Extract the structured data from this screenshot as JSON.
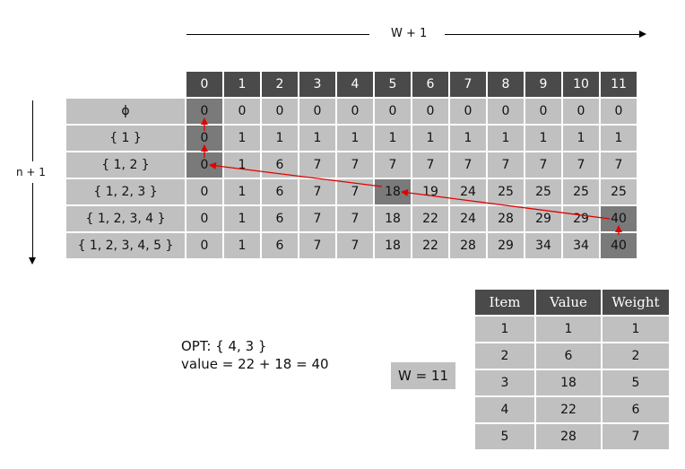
{
  "w_axis_label": "W + 1",
  "n_axis_label": "n + 1",
  "dp_table": {
    "column_headers": [
      "0",
      "1",
      "2",
      "3",
      "4",
      "5",
      "6",
      "7",
      "8",
      "9",
      "10",
      "11"
    ],
    "rows": [
      {
        "label": "ϕ",
        "values": [
          "0",
          "0",
          "0",
          "0",
          "0",
          "0",
          "0",
          "0",
          "0",
          "0",
          "0",
          "0"
        ]
      },
      {
        "label": "{ 1 }",
        "values": [
          "0",
          "1",
          "1",
          "1",
          "1",
          "1",
          "1",
          "1",
          "1",
          "1",
          "1",
          "1"
        ]
      },
      {
        "label": "{ 1, 2 }",
        "values": [
          "0",
          "1",
          "6",
          "7",
          "7",
          "7",
          "7",
          "7",
          "7",
          "7",
          "7",
          "7"
        ]
      },
      {
        "label": "{ 1, 2, 3 }",
        "values": [
          "0",
          "1",
          "6",
          "7",
          "7",
          "18",
          "19",
          "24",
          "25",
          "25",
          "25",
          "25"
        ]
      },
      {
        "label": "{ 1, 2, 3, 4 }",
        "values": [
          "0",
          "1",
          "6",
          "7",
          "7",
          "18",
          "22",
          "24",
          "28",
          "29",
          "29",
          "40"
        ]
      },
      {
        "label": "{ 1, 2, 3, 4, 5 }",
        "values": [
          "0",
          "1",
          "6",
          "7",
          "7",
          "18",
          "22",
          "28",
          "29",
          "34",
          "34",
          "40"
        ]
      }
    ]
  },
  "opt": {
    "line1": "OPT:  { 4, 3 }",
    "line2": "value = 22 + 18 = 40"
  },
  "capacity": "W = 11",
  "items_table": {
    "headers": [
      "Item",
      "Value",
      "Weight"
    ],
    "rows": [
      [
        "1",
        "1",
        "1"
      ],
      [
        "2",
        "6",
        "2"
      ],
      [
        "3",
        "18",
        "5"
      ],
      [
        "4",
        "22",
        "6"
      ],
      [
        "5",
        "28",
        "7"
      ]
    ]
  },
  "colors": {
    "header_bg": "#4a4a4a",
    "cell_bg": "#c0c0c0",
    "highlight_bg": "#7a7a7a",
    "trace_arrow": "#e00000"
  }
}
